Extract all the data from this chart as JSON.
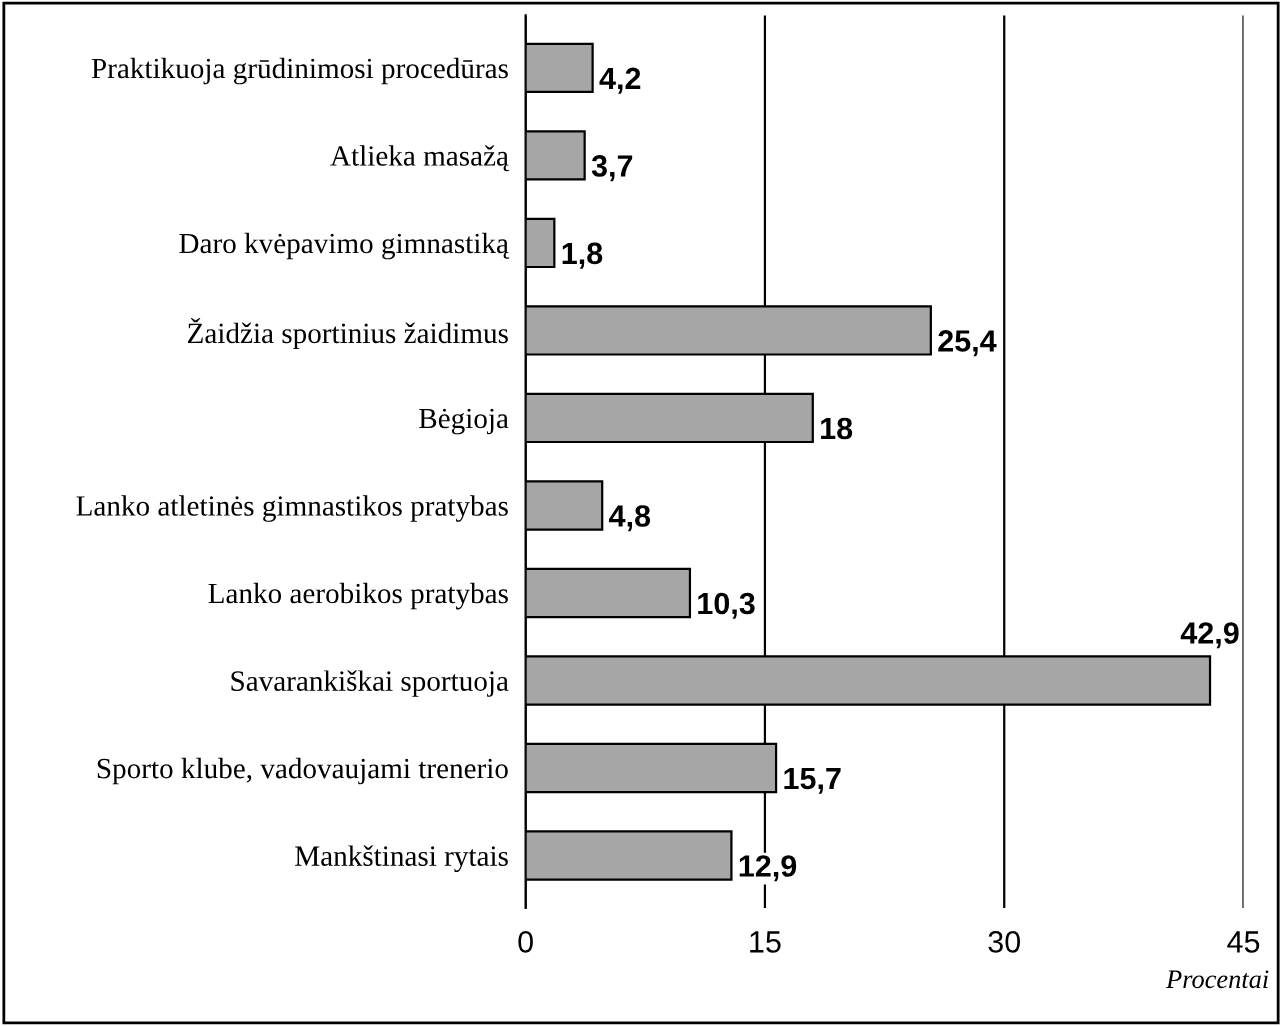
{
  "chart_data": {
    "type": "bar",
    "orientation": "horizontal",
    "xlabel": "Procentai",
    "categories": [
      "Praktikuoja grūdinimosi procedūras",
      "Atlieka masažą",
      "Daro kvėpavimo gimnastiką",
      "Žaidžia sportinius žaidimus",
      "Bėgioja",
      "Lanko atletinės gimnastikos pratybas",
      "Lanko aerobikos pratybas",
      "Savarankiškai sportuoja",
      "Sporto klube, vadovaujami trenerio",
      "Mankštinasi rytais"
    ],
    "values": [
      4.2,
      3.7,
      1.8,
      25.4,
      18,
      4.8,
      10.3,
      42.9,
      15.7,
      12.9
    ],
    "value_labels": [
      "4,2",
      "3,7",
      "1,8",
      "25,4",
      "18",
      "4,8",
      "10,3",
      "42,9",
      "15,7",
      "12,9"
    ],
    "color": "#a6a6a6",
    "xlim": [
      0,
      45
    ],
    "xticks": [
      0,
      15,
      30,
      45
    ],
    "grid": "x"
  }
}
